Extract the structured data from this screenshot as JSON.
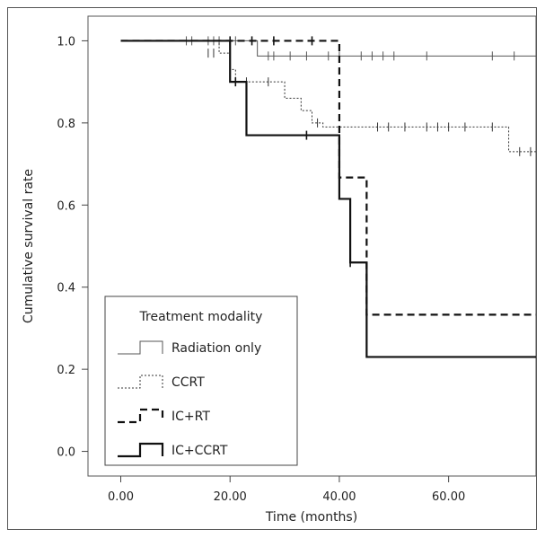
{
  "chart_data": {
    "type": "line",
    "title": "",
    "xlabel": "Time (months)",
    "ylabel": "Cumulative survival rate",
    "xlim": [
      -6,
      76
    ],
    "ylim": [
      -0.06,
      1.06
    ],
    "x_ticks": [
      0,
      20,
      40,
      60
    ],
    "x_tick_labels": [
      "0.00",
      "20.00",
      "40.00",
      "60.00"
    ],
    "y_ticks": [
      0.0,
      0.2,
      0.4,
      0.6,
      0.8,
      1.0
    ],
    "y_tick_labels": [
      "0.0",
      "0.2",
      "0.4",
      "0.6",
      "0.8",
      "1.0"
    ],
    "grid": false,
    "legend": {
      "title": "Treatment modality",
      "placement": "bottom-left"
    },
    "series": [
      {
        "name": "Radiation only",
        "style": "thin-solid",
        "color": "#555555",
        "steps": [
          [
            0,
            1.0
          ],
          [
            25,
            0.963
          ],
          [
            76,
            0.963
          ]
        ],
        "censored": [
          [
            12,
            1.0
          ],
          [
            13,
            1.0
          ],
          [
            16,
            1.0
          ],
          [
            17,
            1.0
          ],
          [
            18,
            1.0
          ],
          [
            21,
            1.0
          ],
          [
            27,
            0.963
          ],
          [
            28,
            0.963
          ],
          [
            31,
            0.963
          ],
          [
            34,
            0.963
          ],
          [
            38,
            0.963
          ],
          [
            40,
            0.963
          ],
          [
            44,
            0.963
          ],
          [
            46,
            0.963
          ],
          [
            48,
            0.963
          ],
          [
            50,
            0.963
          ],
          [
            56,
            0.963
          ],
          [
            68,
            0.963
          ],
          [
            72,
            0.963
          ]
        ]
      },
      {
        "name": "CCRT",
        "style": "thin-dotted",
        "color": "#333333",
        "steps": [
          [
            0,
            1.0
          ],
          [
            18,
            0.97
          ],
          [
            20,
            0.93
          ],
          [
            21,
            0.9
          ],
          [
            28,
            0.9
          ],
          [
            30,
            0.86
          ],
          [
            33,
            0.83
          ],
          [
            35,
            0.8
          ],
          [
            37,
            0.79
          ],
          [
            71,
            0.79
          ],
          [
            71,
            0.73
          ],
          [
            76,
            0.73
          ]
        ],
        "censored": [
          [
            16,
            0.97
          ],
          [
            17,
            0.97
          ],
          [
            23,
            0.9
          ],
          [
            27,
            0.9
          ],
          [
            36,
            0.8
          ],
          [
            47,
            0.79
          ],
          [
            49,
            0.79
          ],
          [
            52,
            0.79
          ],
          [
            56,
            0.79
          ],
          [
            58,
            0.79
          ],
          [
            60,
            0.79
          ],
          [
            63,
            0.79
          ],
          [
            68,
            0.79
          ],
          [
            73,
            0.73
          ],
          [
            75,
            0.73
          ]
        ]
      },
      {
        "name": "IC+RT",
        "style": "thick-dashed",
        "color": "#111111",
        "steps": [
          [
            0,
            1.0
          ],
          [
            40,
            1.0
          ],
          [
            40,
            0.667
          ],
          [
            45,
            0.667
          ],
          [
            45,
            0.333
          ],
          [
            76,
            0.333
          ]
        ],
        "censored": [
          [
            20,
            1.0
          ],
          [
            24,
            1.0
          ],
          [
            28,
            1.0
          ],
          [
            35,
            1.0
          ]
        ]
      },
      {
        "name": "IC+CCRT",
        "style": "thick-solid",
        "color": "#111111",
        "steps": [
          [
            0,
            1.0
          ],
          [
            20,
            1.0
          ],
          [
            20,
            0.9
          ],
          [
            23,
            0.9
          ],
          [
            23,
            0.77
          ],
          [
            40,
            0.77
          ],
          [
            40,
            0.615
          ],
          [
            42,
            0.615
          ],
          [
            42,
            0.46
          ],
          [
            45,
            0.46
          ],
          [
            45,
            0.23
          ],
          [
            76,
            0.23
          ]
        ],
        "censored": [
          [
            21,
            0.9
          ],
          [
            34,
            0.77
          ],
          [
            42,
            0.46
          ]
        ]
      }
    ]
  }
}
